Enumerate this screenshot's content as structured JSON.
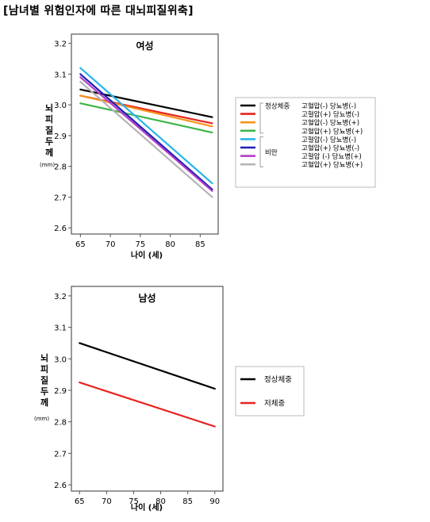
{
  "page_title": "[남녀별 위험인자에 따른 대뇌피질위축]",
  "colors": {
    "black": "#000000",
    "red": "#e8231f",
    "orange": "#f7941d",
    "green": "#3db54a",
    "cyan": "#29b6e8",
    "blue": "#1f1fb4",
    "magenta": "#b43cc8",
    "gray": "#b4b4b4"
  },
  "chart_data": [
    {
      "type": "line",
      "title": "여성",
      "xlabel": "나이 (세)",
      "ylabel": "뇌피질두께",
      "yunit": "(mm)",
      "xlim": [
        63.5,
        88
      ],
      "ylim": [
        2.58,
        3.23
      ],
      "xticks": [
        65,
        70,
        75,
        80,
        85
      ],
      "yticks": [
        2.6,
        2.7,
        2.8,
        2.9,
        3.0,
        3.1,
        3.2
      ],
      "ytick_labels": [
        "2.6",
        "2.7",
        "2.8",
        "2.9",
        "3.0",
        "3.1",
        "3.2"
      ],
      "grid": false,
      "legend_position": "right",
      "legend_groups": [
        {
          "label": "정상체중",
          "start": 0,
          "end": 3
        },
        {
          "label": "비만",
          "start": 4,
          "end": 7
        }
      ],
      "series": [
        {
          "name": "고혈압(-) 당뇨병(-)",
          "color": "#000000",
          "x": [
            65,
            87
          ],
          "y": [
            3.05,
            2.96
          ]
        },
        {
          "name": "고혈압(+) 당뇨병(-)",
          "color": "#e8231f",
          "x": [
            65,
            87
          ],
          "y": [
            3.03,
            2.94
          ]
        },
        {
          "name": "고혈압(-) 당뇨병(+)",
          "color": "#f7941d",
          "x": [
            65,
            87
          ],
          "y": [
            3.03,
            2.93
          ]
        },
        {
          "name": "고혈압(+) 당뇨병(+)",
          "color": "#3db54a",
          "x": [
            65,
            87
          ],
          "y": [
            3.005,
            2.91
          ]
        },
        {
          "name": "고혈압(-) 당뇨병(-)",
          "color": "#29b6e8",
          "x": [
            65,
            87
          ],
          "y": [
            3.12,
            2.745
          ]
        },
        {
          "name": "고혈압(+) 당뇨병(-)",
          "color": "#1f1fb4",
          "x": [
            65,
            87
          ],
          "y": [
            3.1,
            2.725
          ]
        },
        {
          "name": "고혈압 (-) 당뇨병(+)",
          "color": "#b43cc8",
          "x": [
            65,
            87
          ],
          "y": [
            3.09,
            2.72
          ]
        },
        {
          "name": "고혈압(+) 당뇨병(+)",
          "color": "#b4b4b4",
          "x": [
            65,
            87
          ],
          "y": [
            3.075,
            2.7
          ]
        }
      ]
    },
    {
      "type": "line",
      "title": "남성",
      "xlabel": "나이 (세)",
      "ylabel": "뇌피질두께",
      "yunit": "(mm)",
      "xlim": [
        63.5,
        91.5
      ],
      "ylim": [
        2.58,
        3.23
      ],
      "xticks": [
        65,
        70,
        75,
        80,
        85,
        90
      ],
      "yticks": [
        2.6,
        2.7,
        2.8,
        2.9,
        3.0,
        3.1,
        3.2
      ],
      "ytick_labels": [
        "2.6",
        "2.7",
        "2.8",
        "2.9",
        "3.0",
        "3.1",
        "3.2"
      ],
      "grid": false,
      "legend_position": "right",
      "legend_groups": [],
      "series": [
        {
          "name": "정상체중",
          "color": "#000000",
          "x": [
            65,
            90
          ],
          "y": [
            3.05,
            2.905
          ]
        },
        {
          "name": "저체중",
          "color": "#e8231f",
          "x": [
            65,
            90
          ],
          "y": [
            2.925,
            2.785
          ]
        }
      ]
    }
  ]
}
